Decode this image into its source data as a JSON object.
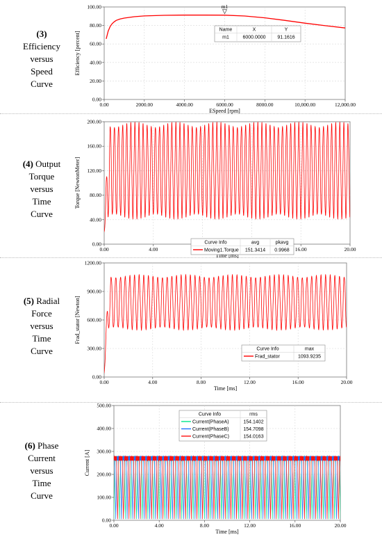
{
  "panels": [
    {
      "num": "(3)",
      "label_lines": [
        "Efficiency",
        "versus",
        "Speed",
        "Curve"
      ]
    },
    {
      "num": "(4)",
      "label_lines": [
        "Output",
        "Torque",
        "versus",
        "Time",
        "Curve"
      ],
      "num_inline": true
    },
    {
      "num": "(5)",
      "label_lines": [
        "Radial",
        "Force",
        "versus",
        "Time",
        "Curve"
      ],
      "num_inline": true
    },
    {
      "num": "(6)",
      "label_lines": [
        "Phase",
        "Current",
        "versus",
        "Time",
        "Curve"
      ],
      "num_inline": true
    }
  ],
  "chart_data": [
    {
      "type": "line",
      "xlabel": "Speed [rpm]",
      "xlabel_prefix": "E",
      "ylabel": "Efficiency [percent]",
      "xlim": [
        0,
        12000
      ],
      "ylim": [
        0,
        100
      ],
      "xticks": [
        "0.00",
        "2000.00",
        "4000.00",
        "6000.00",
        "8000.00",
        "10,000.00",
        "12,000.00"
      ],
      "yticks": [
        "0.00",
        "20.00",
        "40.00",
        "60.00",
        "80.00",
        "100.00"
      ],
      "series": [
        {
          "color": "#ff0000",
          "x": [
            100,
            200,
            300,
            400,
            500,
            600,
            800,
            1000,
            1500,
            2000,
            3000,
            4000,
            5000,
            6000,
            7000,
            8000,
            9000,
            10000,
            11000,
            12000
          ],
          "y": [
            65.5,
            74,
            79,
            82,
            84,
            85.5,
            87,
            88,
            89.5,
            90.3,
            91,
            91.2,
            91.2,
            91.16,
            90.2,
            88.3,
            85.5,
            82.5,
            79.8,
            77.3
          ]
        }
      ],
      "marker": {
        "name": "m1",
        "x": 6000,
        "y": 91.1616
      },
      "table": {
        "headers": [
          "Name",
          "X",
          "Y"
        ],
        "rows": [
          [
            "m1",
            "6000.0000",
            "91.1616"
          ]
        ]
      }
    },
    {
      "type": "line",
      "xlabel": "Time [ms]",
      "ylabel": "Torque [NewtonMeter]",
      "xlim": [
        0,
        20
      ],
      "ylim": [
        0,
        200
      ],
      "xticks": [
        "0.00",
        "4.00",
        "8.00",
        "12.00",
        "16.00",
        "20.00"
      ],
      "yticks": [
        "0.00",
        "40.00",
        "80.00",
        "120.00",
        "160.00",
        "200.00"
      ],
      "wave": {
        "periods": 60,
        "min": 45,
        "max": 195,
        "start": 20,
        "color": "#ff0000"
      },
      "table": {
        "headers": [
          "Curve Info",
          "avg",
          "pkavg"
        ],
        "rows": [
          [
            "Moving1.Torque",
            "151.3414",
            "0.9968"
          ]
        ]
      }
    },
    {
      "type": "line",
      "xlabel": "Time [ms]",
      "ylabel": "Frad_stator [Newton]",
      "xlim": [
        0,
        20
      ],
      "ylim": [
        0,
        1200
      ],
      "xticks": [
        "0.00",
        "4.00",
        "8.00",
        "12.00",
        "16.00",
        "20.00"
      ],
      "yticks": [
        "0.00",
        "300.00",
        "600.00",
        "900.00",
        "1200.00"
      ],
      "wave": {
        "periods": 52,
        "min": 510,
        "max": 1060,
        "start": 40,
        "color": "#ff0000"
      },
      "table": {
        "headers": [
          "Curve Info",
          "max"
        ],
        "rows": [
          [
            "Frad_stator",
            "1093.9235"
          ]
        ]
      }
    },
    {
      "type": "line",
      "xlabel": "Time [ms]",
      "ylabel": "Current [A]",
      "xlim": [
        0,
        20
      ],
      "ylim": [
        0,
        500
      ],
      "xticks": [
        "0.00",
        "4.00",
        "8.00",
        "12.00",
        "16.00",
        "20.00"
      ],
      "yticks": [
        "0.00",
        "100.00",
        "200.00",
        "300.00",
        "400.00",
        "500.00"
      ],
      "series": [
        {
          "name": "Current(PhaseA)",
          "color": "#00e58a"
        },
        {
          "name": "Current(PhaseB)",
          "color": "#1f6fff"
        },
        {
          "name": "Current(PhaseC)",
          "color": "#ff1010"
        }
      ],
      "current_wave": {
        "periods": 40,
        "min": 5,
        "max": 280
      },
      "table": {
        "headers": [
          "Curve Info",
          "rms"
        ],
        "rows": [
          [
            "Current(PhaseA)",
            "154.1402"
          ],
          [
            "Current(PhaseB)",
            "154.7098"
          ],
          [
            "Current(PhaseC)",
            "154.0163"
          ]
        ]
      }
    }
  ]
}
